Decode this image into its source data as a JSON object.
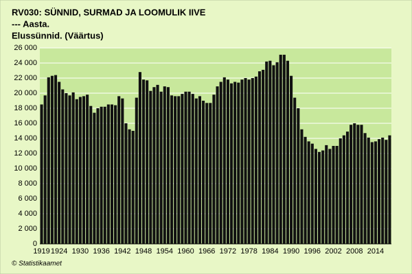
{
  "chart_data": {
    "type": "bar",
    "title": "RV030: SÜNNID, SURMAD JA LOOMULIK IIVE",
    "subtitle": "--- Aasta.",
    "y_label": "Elussünnid. (Väärtus)",
    "source": "© Statistikaamet",
    "color": "#111111",
    "grid": true,
    "categories": [
      "1919",
      null,
      null,
      null,
      null,
      "1924",
      null,
      null,
      null,
      null,
      null,
      "1930",
      null,
      null,
      null,
      null,
      null,
      "1936",
      null,
      null,
      null,
      null,
      null,
      "1942",
      null,
      null,
      null,
      null,
      null,
      "1948",
      null,
      null,
      null,
      null,
      null,
      "1954",
      null,
      null,
      null,
      null,
      null,
      "1960",
      null,
      null,
      null,
      null,
      null,
      "1966",
      null,
      null,
      null,
      null,
      null,
      "1972",
      null,
      null,
      null,
      null,
      null,
      "1978",
      null,
      null,
      null,
      null,
      null,
      "1984",
      null,
      null,
      null,
      null,
      null,
      "1990",
      null,
      null,
      null,
      null,
      null,
      "1996",
      null,
      null,
      null,
      null,
      null,
      "2002",
      null,
      null,
      null,
      null,
      null,
      "2008",
      null,
      null,
      null,
      null,
      null,
      "2014",
      null,
      null,
      null,
      null
    ],
    "values": [
      18500,
      19700,
      22100,
      22300,
      22400,
      21500,
      20500,
      20000,
      19700,
      20100,
      19200,
      19500,
      19600,
      19800,
      18300,
      17400,
      18000,
      18200,
      18200,
      18500,
      18500,
      18400,
      19600,
      19300,
      16000,
      15200,
      15000,
      19400,
      22800,
      21800,
      21700,
      20300,
      20800,
      21100,
      20200,
      20900,
      20800,
      19700,
      19600,
      19600,
      19900,
      20200,
      20200,
      19900,
      19300,
      19600,
      19000,
      18700,
      18700,
      19800,
      20900,
      21500,
      22100,
      21800,
      21300,
      21500,
      21400,
      21800,
      22000,
      21800,
      22000,
      22200,
      22900,
      23100,
      24200,
      24300,
      23700,
      24100,
      25100,
      25100,
      24300,
      22300,
      19400,
      18000,
      15200,
      14200,
      13600,
      13300,
      12600,
      12200,
      12400,
      13100,
      12600,
      13000,
      13000,
      14000,
      14400,
      14900,
      15800,
      16000,
      15800,
      15800,
      14700,
      14100,
      13500,
      13600,
      13900,
      14100,
      13800,
      14400
    ],
    "ylim": [
      0,
      26000
    ],
    "yticks": [
      0,
      {
        "value": 2000,
        "label": "2 000"
      },
      {
        "value": 4000,
        "label": "4 000"
      },
      {
        "value": 6000,
        "label": "6 000"
      },
      {
        "value": 8000,
        "label": "8 000"
      },
      {
        "value": 10000,
        "label": "10 000"
      },
      {
        "value": 12000,
        "label": "12 000"
      },
      {
        "value": 14000,
        "label": "14 000"
      },
      {
        "value": 16000,
        "label": "16 000"
      },
      {
        "value": 18000,
        "label": "18 000"
      },
      {
        "value": 20000,
        "label": "20 000"
      },
      {
        "value": 22000,
        "label": "22 000"
      },
      {
        "value": 24000,
        "label": "24 000"
      },
      {
        "value": 26000,
        "label": "26 000"
      }
    ]
  }
}
